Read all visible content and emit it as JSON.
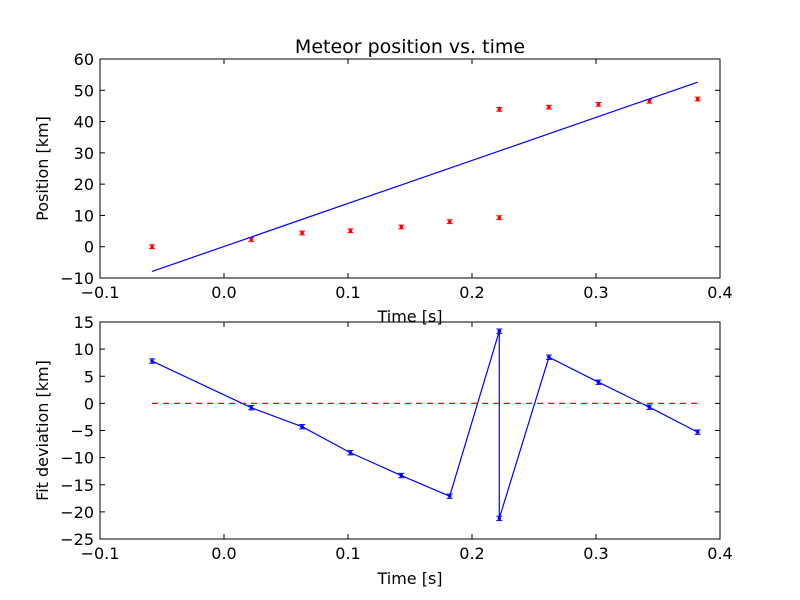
{
  "chart_data": [
    {
      "type": "scatter",
      "title": "Meteor position vs. time",
      "xlabel": "Time [s]",
      "ylabel": "Position [km]",
      "xlim": [
        -0.1,
        0.4
      ],
      "ylim": [
        -10,
        60
      ],
      "xticks": [
        "−0.1",
        "0.0",
        "0.1",
        "0.2",
        "0.3",
        "0.4"
      ],
      "xtick_values": [
        -0.1,
        0.0,
        0.1,
        0.2,
        0.3,
        0.4
      ],
      "yticks": [
        "−10",
        "0",
        "10",
        "20",
        "30",
        "40",
        "50",
        "60"
      ],
      "ytick_values": [
        -10,
        0,
        10,
        20,
        30,
        40,
        50,
        60
      ],
      "grid": false,
      "series": [
        {
          "kind": "errorbar-points",
          "color": "#ff0000",
          "x": [
            -0.058,
            0.022,
            0.063,
            0.102,
            0.143,
            0.182,
            0.222,
            0.222,
            0.262,
            0.302,
            0.343,
            0.382
          ],
          "y": [
            0.0,
            2.3,
            4.4,
            5.1,
            6.3,
            8.0,
            9.3,
            43.9,
            44.6,
            45.5,
            46.5,
            47.2
          ],
          "yerr": [
            0.6,
            0.6,
            0.6,
            0.6,
            0.6,
            0.6,
            0.6,
            0.6,
            0.6,
            0.6,
            0.6,
            0.6
          ]
        },
        {
          "kind": "line",
          "color": "#0000ff",
          "x": [
            -0.058,
            0.382
          ],
          "y": [
            -7.9,
            52.6
          ]
        }
      ]
    },
    {
      "type": "line",
      "title": "",
      "xlabel": "Time [s]",
      "ylabel": "Fit deviation [km]",
      "xlim": [
        -0.1,
        0.4
      ],
      "ylim": [
        -25,
        15
      ],
      "xticks": [
        "−0.1",
        "0.0",
        "0.1",
        "0.2",
        "0.3",
        "0.4"
      ],
      "xtick_values": [
        -0.1,
        0.0,
        0.1,
        0.2,
        0.3,
        0.4
      ],
      "yticks": [
        "−25",
        "−20",
        "−15",
        "−10",
        "−5",
        "0",
        "5",
        "10",
        "15"
      ],
      "ytick_values": [
        -25,
        -20,
        -15,
        -10,
        -5,
        0,
        5,
        10,
        15
      ],
      "grid": false,
      "series": [
        {
          "kind": "errorbar-line",
          "color": "#0000ff",
          "x": [
            -0.058,
            0.022,
            0.063,
            0.102,
            0.143,
            0.182,
            0.222,
            0.222,
            0.262,
            0.302,
            0.343,
            0.382
          ],
          "y": [
            7.8,
            -0.8,
            -4.3,
            -9.1,
            -13.3,
            -17.1,
            13.3,
            -21.2,
            8.5,
            3.9,
            -0.7,
            -5.3
          ],
          "yerr": [
            0.4,
            0.4,
            0.4,
            0.4,
            0.4,
            0.4,
            0.4,
            0.4,
            0.4,
            0.4,
            0.4,
            0.4
          ]
        },
        {
          "kind": "dashed-line",
          "color": "#ff0000",
          "x": [
            -0.058,
            0.382
          ],
          "y": [
            0,
            0
          ]
        }
      ]
    }
  ]
}
